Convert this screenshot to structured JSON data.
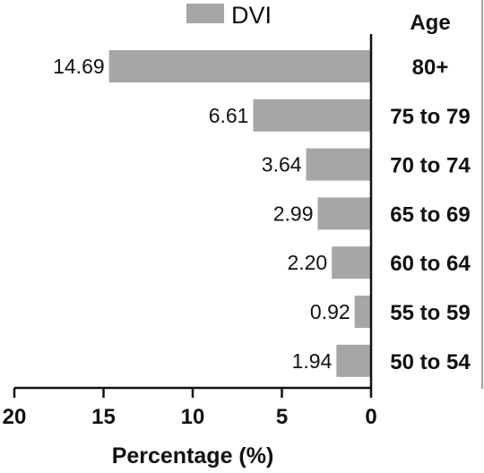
{
  "chart_data": {
    "type": "bar",
    "orientation": "horizontal",
    "x_direction": "reversed",
    "categories": [
      "80+",
      "75 to 79",
      "70 to 74",
      "65 to 69",
      "60 to 64",
      "55 to 59",
      "50 to 54"
    ],
    "category_header": "Age",
    "series": [
      {
        "name": "DVI",
        "values": [
          14.69,
          6.61,
          3.64,
          2.99,
          2.2,
          0.92,
          1.94
        ],
        "labels": [
          "14.69",
          "6.61",
          "3.64",
          "2.99",
          "2.20",
          "0.92",
          "1.94"
        ],
        "color": "#a6a6a8"
      }
    ],
    "xlabel": "Percentage (%)",
    "xlim": [
      0,
      20
    ],
    "xticks": [
      20,
      15,
      10,
      5,
      0
    ],
    "xtick_labels": [
      "20",
      "15",
      "10",
      "5",
      "0"
    ],
    "legend_position": "top",
    "grid": false
  }
}
